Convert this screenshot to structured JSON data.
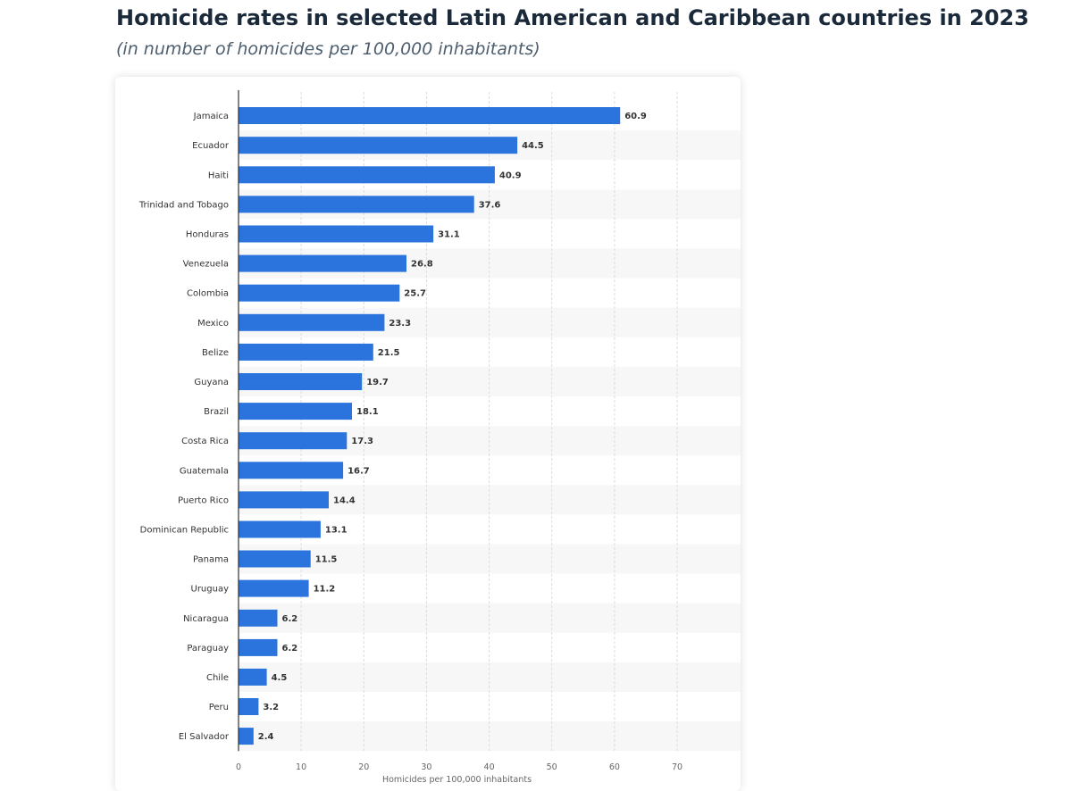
{
  "page": {
    "title": "Homicide rates in selected Latin American and Caribbean countries in 2023",
    "subtitle": "(in number of homicides per 100,000 inhabitants)"
  },
  "chart_data": {
    "type": "bar",
    "orientation": "horizontal",
    "categories": [
      "Jamaica",
      "Ecuador",
      "Haiti",
      "Trinidad and Tobago",
      "Honduras",
      "Venezuela",
      "Colombia",
      "Mexico",
      "Belize",
      "Guyana",
      "Brazil",
      "Costa Rica",
      "Guatemala",
      "Puerto Rico",
      "Dominican Republic",
      "Panama",
      "Uruguay",
      "Nicaragua",
      "Paraguay",
      "Chile",
      "Peru",
      "El Salvador"
    ],
    "values": [
      60.9,
      44.5,
      40.9,
      37.6,
      31.1,
      26.8,
      25.7,
      23.3,
      21.5,
      19.7,
      18.1,
      17.3,
      16.7,
      14.4,
      13.1,
      11.5,
      11.2,
      6.2,
      6.2,
      4.5,
      3.2,
      2.4
    ],
    "value_labels": [
      "60.9",
      "44.5",
      "40.9",
      "37.6",
      "31.1",
      "26.8",
      "25.7",
      "23.3",
      "21.5",
      "19.7",
      "18.1",
      "17.3",
      "16.7",
      "14.4",
      "13.1",
      "11.5",
      "11.2",
      "6.2",
      "6.2",
      "4.5",
      "3.2",
      "2.4"
    ],
    "xlabel": "Homicides per 100,000 inhabitants",
    "xlim": [
      0,
      70
    ],
    "xticks": [
      0,
      10,
      20,
      30,
      40,
      50,
      60,
      70
    ],
    "xtick_labels": [
      "0",
      "10",
      "20",
      "30",
      "40",
      "50",
      "60",
      "70"
    ],
    "grid": true,
    "bar_color": "#2b74dd"
  }
}
